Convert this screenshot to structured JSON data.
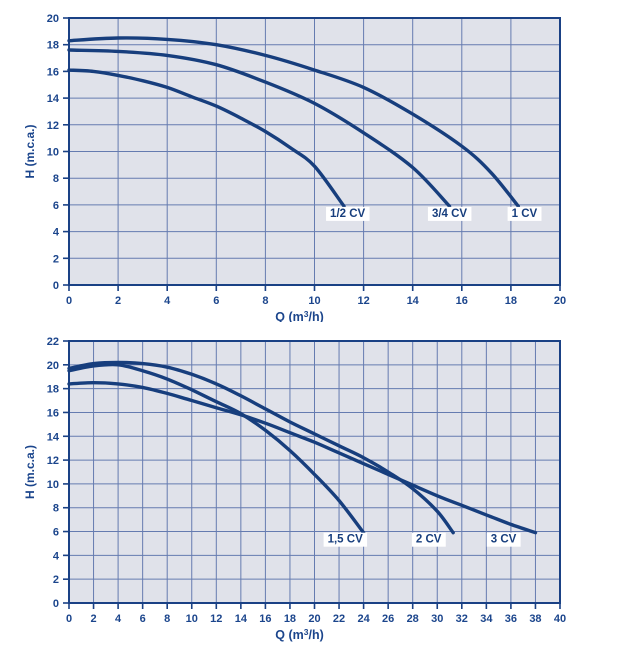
{
  "page": {
    "background": "#ffffff"
  },
  "colors": {
    "curve_navy": "#173e7d",
    "frame_navy": "#1a4185",
    "text_blue": "#1b458c",
    "plot_bg": "#e0e2ea",
    "grid_blue": "#657bb0",
    "label_bg": "#ffffff"
  },
  "chart_data": [
    {
      "type": "line",
      "title": "",
      "xlabel": "Q (m³/h)",
      "ylabel": "H (m.c.a.)",
      "xlim": [
        0,
        20
      ],
      "ylim": [
        0,
        20
      ],
      "xticks": [
        0,
        2,
        4,
        6,
        8,
        10,
        12,
        14,
        16,
        18,
        20
      ],
      "yticks": [
        0,
        2,
        4,
        6,
        8,
        10,
        12,
        14,
        16,
        18,
        20
      ],
      "grid": true,
      "legend_position": "inline-labels",
      "series": [
        {
          "name": "1/2 CV",
          "points": [
            [
              0,
              16.1
            ],
            [
              1,
              16.0
            ],
            [
              2,
              15.7
            ],
            [
              3,
              15.3
            ],
            [
              4,
              14.8
            ],
            [
              5,
              14.1
            ],
            [
              6,
              13.4
            ],
            [
              7,
              12.5
            ],
            [
              8,
              11.5
            ],
            [
              9,
              10.3
            ],
            [
              10,
              8.9
            ],
            [
              11.2,
              5.9
            ]
          ]
        },
        {
          "name": "3/4 CV",
          "points": [
            [
              0,
              17.6
            ],
            [
              2,
              17.5
            ],
            [
              4,
              17.2
            ],
            [
              6,
              16.5
            ],
            [
              8,
              15.2
            ],
            [
              10,
              13.6
            ],
            [
              12,
              11.4
            ],
            [
              14,
              8.8
            ],
            [
              15.5,
              5.9
            ]
          ]
        },
        {
          "name": "1 CV",
          "points": [
            [
              0,
              18.3
            ],
            [
              2,
              18.5
            ],
            [
              4,
              18.4
            ],
            [
              6,
              18.0
            ],
            [
              8,
              17.2
            ],
            [
              10,
              16.1
            ],
            [
              12,
              14.8
            ],
            [
              14,
              12.8
            ],
            [
              16,
              10.4
            ],
            [
              17.2,
              8.4
            ],
            [
              18.3,
              5.9
            ]
          ]
        }
      ],
      "series_labels": [
        {
          "text": "1/2 CV",
          "x": 11.35,
          "y": 5.4
        },
        {
          "text": "3/4 CV",
          "x": 15.5,
          "y": 5.4
        },
        {
          "text": "1 CV",
          "x": 18.55,
          "y": 5.4
        }
      ]
    },
    {
      "type": "line",
      "title": "",
      "xlabel": "Q (m³/h)",
      "ylabel": "H (m.c.a.)",
      "xlim": [
        0,
        40
      ],
      "ylim": [
        0,
        22
      ],
      "xticks": [
        0,
        2,
        4,
        6,
        8,
        10,
        12,
        14,
        16,
        18,
        20,
        22,
        24,
        26,
        28,
        30,
        32,
        34,
        36,
        38,
        40
      ],
      "yticks": [
        0,
        2,
        4,
        6,
        8,
        10,
        12,
        14,
        16,
        18,
        20,
        22
      ],
      "grid": true,
      "legend_position": "inline-labels",
      "series": [
        {
          "name": "1,5 CV",
          "points": [
            [
              0,
              19.5
            ],
            [
              2,
              19.9
            ],
            [
              4,
              20.0
            ],
            [
              6,
              19.5
            ],
            [
              8,
              18.8
            ],
            [
              10,
              17.9
            ],
            [
              12,
              16.9
            ],
            [
              14,
              15.9
            ],
            [
              16,
              14.5
            ],
            [
              18,
              12.8
            ],
            [
              20,
              10.8
            ],
            [
              22,
              8.6
            ],
            [
              24,
              5.9
            ]
          ]
        },
        {
          "name": "2 CV",
          "points": [
            [
              0,
              19.7
            ],
            [
              2,
              20.1
            ],
            [
              4,
              20.2
            ],
            [
              6,
              20.1
            ],
            [
              8,
              19.8
            ],
            [
              10,
              19.2
            ],
            [
              12,
              18.4
            ],
            [
              14,
              17.4
            ],
            [
              16,
              16.3
            ],
            [
              18,
              15.2
            ],
            [
              20,
              14.2
            ],
            [
              22,
              13.2
            ],
            [
              24,
              12.2
            ],
            [
              26,
              11.0
            ],
            [
              28,
              9.6
            ],
            [
              30,
              7.7
            ],
            [
              31.3,
              5.9
            ]
          ]
        },
        {
          "name": "3 CV",
          "points": [
            [
              0,
              18.4
            ],
            [
              2,
              18.5
            ],
            [
              4,
              18.4
            ],
            [
              6,
              18.1
            ],
            [
              8,
              17.6
            ],
            [
              10,
              17.0
            ],
            [
              12,
              16.4
            ],
            [
              14,
              15.8
            ],
            [
              16,
              15.1
            ],
            [
              18,
              14.3
            ],
            [
              20,
              13.5
            ],
            [
              22,
              12.6
            ],
            [
              24,
              11.7
            ],
            [
              26,
              10.8
            ],
            [
              28,
              9.9
            ],
            [
              30,
              9.0
            ],
            [
              32,
              8.2
            ],
            [
              34,
              7.4
            ],
            [
              36,
              6.6
            ],
            [
              38,
              5.9
            ]
          ]
        }
      ],
      "series_labels": [
        {
          "text": "1,5 CV",
          "x": 22.5,
          "y": 5.4
        },
        {
          "text": "2 CV",
          "x": 29.3,
          "y": 5.4
        },
        {
          "text": "3 CV",
          "x": 35.4,
          "y": 5.4
        }
      ]
    }
  ]
}
